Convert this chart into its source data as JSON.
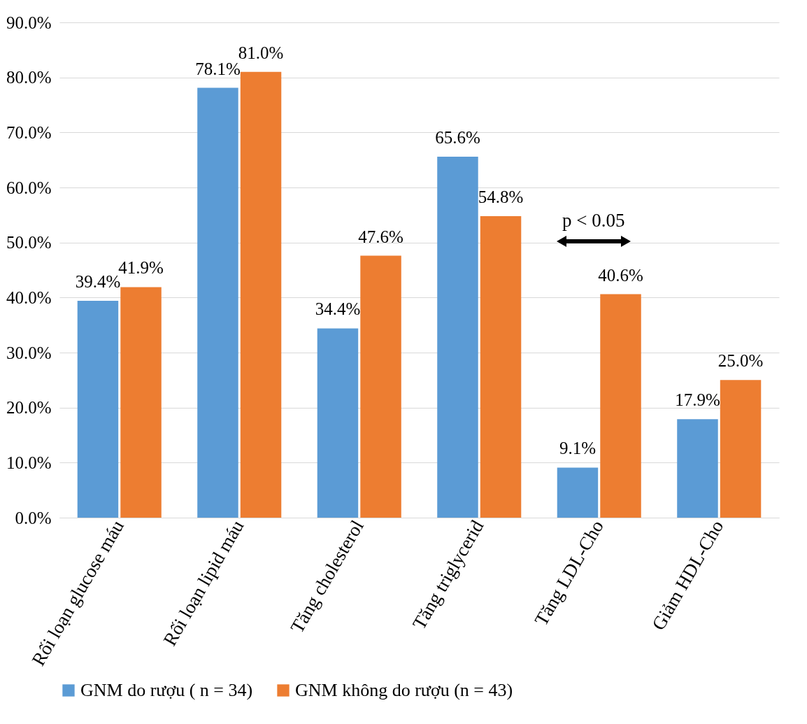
{
  "chart_data": {
    "type": "bar",
    "categories": [
      "Rối loạn glucose máu",
      "Rối loạn lipid máu",
      "Tăng cholesterol",
      "Tăng triglycerid",
      "Tăng LDL-Cho",
      "Giảm HDL-Cho"
    ],
    "series": [
      {
        "name": "GNM do rượu ( n = 34)",
        "color": "#5b9bd5",
        "values": [
          39.4,
          78.1,
          34.4,
          65.6,
          9.1,
          17.9
        ],
        "value_labels": [
          "39.4%",
          "78.1%",
          "34.4%",
          "65.6%",
          "9.1%",
          "17.9%"
        ]
      },
      {
        "name": "GNM không do rượu (n = 43)",
        "color": "#ed7d31",
        "values": [
          41.9,
          81.0,
          47.6,
          54.8,
          40.6,
          25.0
        ],
        "value_labels": [
          "41.9%",
          "81.0%",
          "47.6%",
          "54.8%",
          "40.6%",
          "25.0%"
        ]
      }
    ],
    "ylim": [
      0,
      90
    ],
    "yticks": [
      {
        "value": 0,
        "label": "0.0%"
      },
      {
        "value": 10,
        "label": "10.0%"
      },
      {
        "value": 20,
        "label": "20.0%"
      },
      {
        "value": 30,
        "label": "30.0%"
      },
      {
        "value": 40,
        "label": "40.0%"
      },
      {
        "value": 50,
        "label": "50.0%"
      },
      {
        "value": 60,
        "label": "60.0%"
      },
      {
        "value": 70,
        "label": "70.0%"
      },
      {
        "value": 80,
        "label": "80.0%"
      },
      {
        "value": 90,
        "label": "90.0%"
      }
    ],
    "grid": "y",
    "legend": "bottom",
    "annotations": [
      "p < 0.05"
    ]
  }
}
